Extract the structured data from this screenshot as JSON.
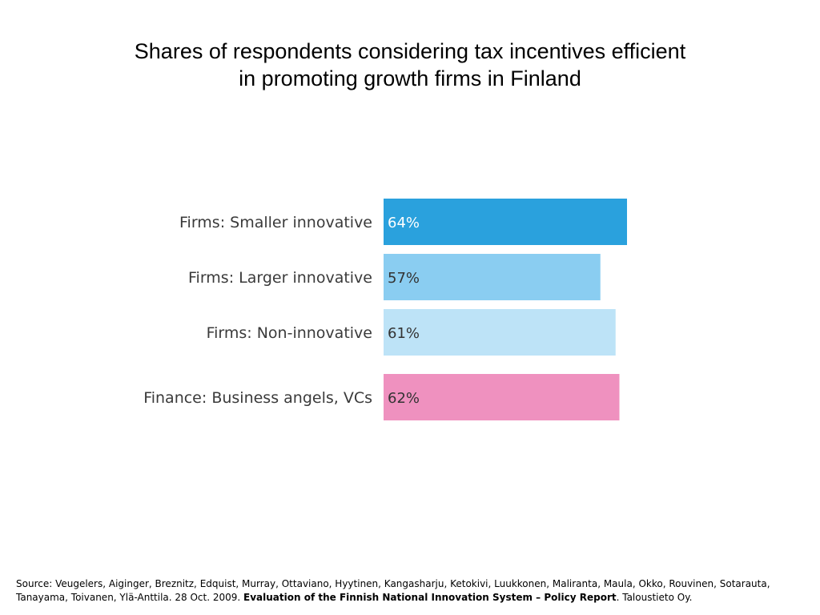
{
  "chart_data": {
    "type": "bar",
    "orientation": "horizontal",
    "title_line1": "Shares of respondents considering tax incentives efficient",
    "title_line2": "in promoting growth firms in Finland",
    "categories": [
      "Firms: Smaller innovative",
      "Firms: Larger innovative",
      "Firms: Non-innovative",
      "Finance: Business angels, VCs"
    ],
    "values": [
      64,
      57,
      61,
      62
    ],
    "value_labels": [
      "64%",
      "57%",
      "61%",
      "62%"
    ],
    "colors": [
      "#2aa1dd",
      "#8acdf1",
      "#bde3f7",
      "#ef91bf"
    ],
    "label_colors": [
      "#ffffff",
      "#333333",
      "#333333",
      "#333333"
    ],
    "xlim": [
      0,
      100
    ],
    "grid": false,
    "legend": "none"
  },
  "source": {
    "prefix": "Source: Veugelers, Aiginger, Breznitz, Edquist, Murray, Ottaviano, Hyytinen, Kangasharju, Ketokivi, Luukkonen, Maliranta, Maula, Okko, Rouvinen, Sotarauta, Tanayama, Toivanen, Ylä-Anttila. 28 Oct. 2009. ",
    "report_title": "Evaluation of the Finnish National Innovation System – Policy Report",
    "suffix": ". Taloustieto Oy."
  }
}
